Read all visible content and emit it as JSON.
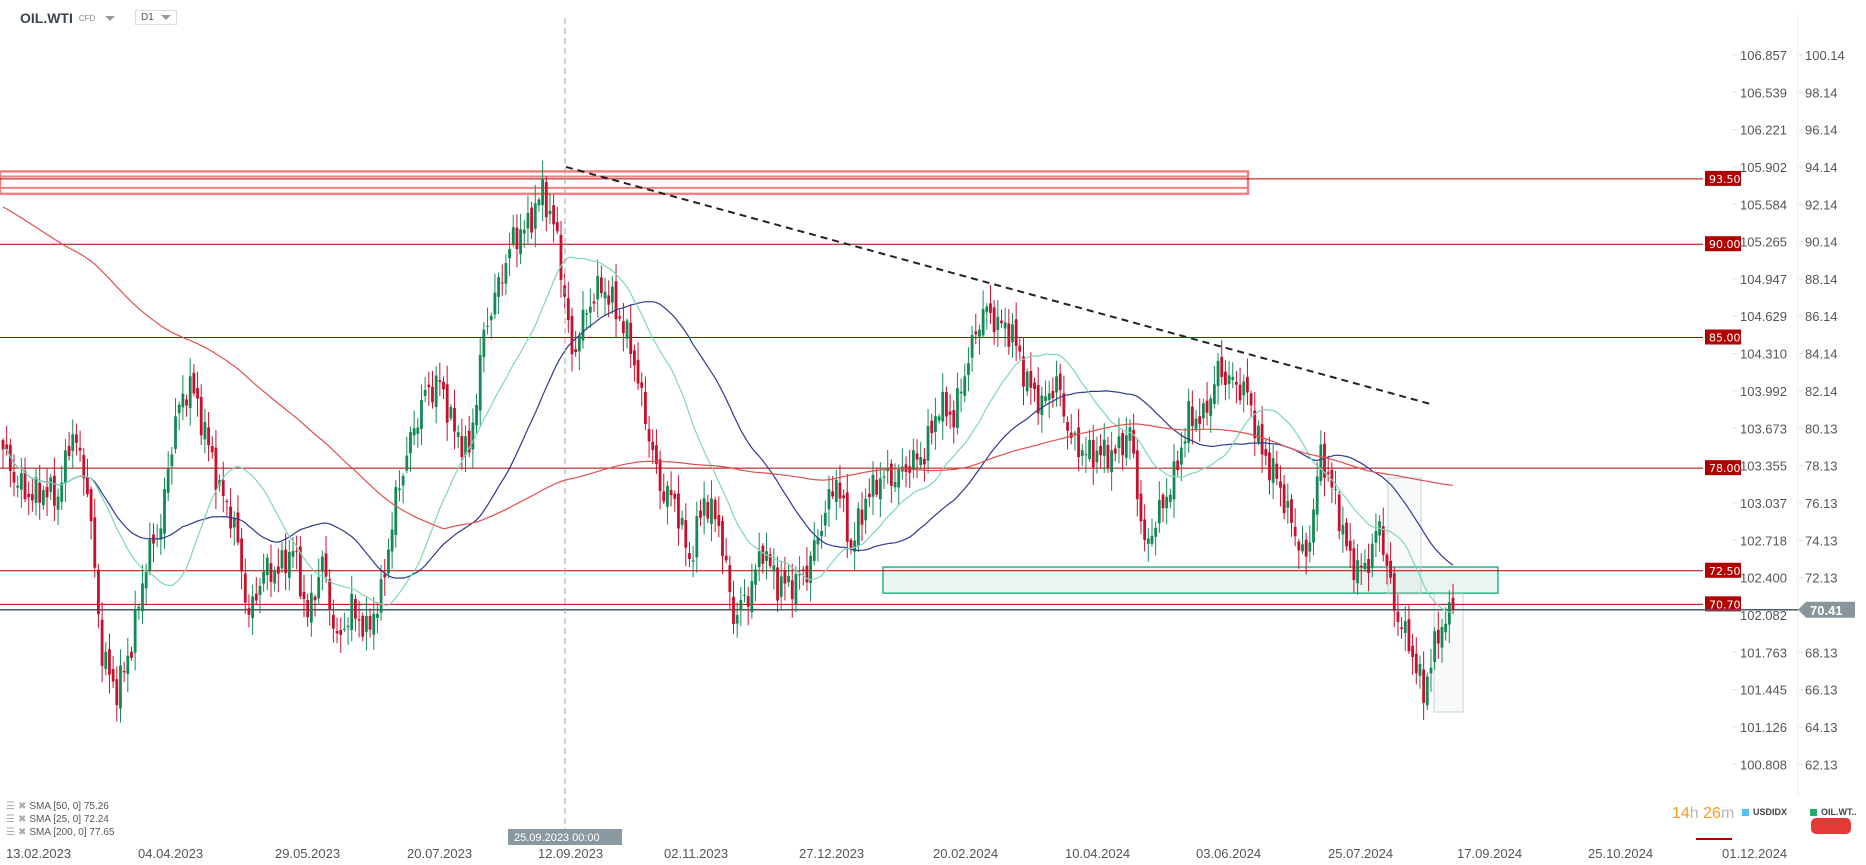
{
  "header": {
    "symbol": "OIL.WTI",
    "instrument_type": "CFD",
    "timeframe": "D1"
  },
  "indicators": [
    {
      "label": "SMA [50, 0] 75.26",
      "color": "#2e3a8c"
    },
    {
      "label": "SMA [25, 0] 72.24",
      "color": "#7fd6b5"
    },
    {
      "label": "SMA [200, 0] 77.65",
      "color": "#e05050"
    }
  ],
  "footer": {
    "timer_hours": "14",
    "timer_h": "h",
    "timer_minutes": "26",
    "timer_m": "m",
    "legend": [
      {
        "label": "USDIDX",
        "color": "#4fc3f7"
      },
      {
        "label": "OIL.WT..",
        "color": "#26a96c"
      }
    ]
  },
  "crosshair_label": "25.09.2023 00:00",
  "chart_data": {
    "type": "candlestick",
    "up_color": "#138a55",
    "down_color": "#c8102e",
    "x_tick_labels": [
      "13.02.2023",
      "04.04.2023",
      "29.05.2023",
      "20.07.2023",
      "12.09.2023",
      "02.11.2023",
      "27.12.2023",
      "20.02.2024",
      "10.04.2024",
      "03.06.2024",
      "25.07.2024",
      "17.09.2024",
      "25.10.2024",
      "01.12.2024"
    ],
    "y_ticks_oil": [
      "100.14",
      "98.14",
      "96.14",
      "94.14",
      "92.14",
      "90.14",
      "88.14",
      "86.14",
      "84.14",
      "82.14",
      "80.13",
      "78.13",
      "76.13",
      "74.13",
      "72.13",
      "70.41",
      "68.13",
      "66.13",
      "64.13",
      "62.13"
    ],
    "y_ticks_usdidx": [
      "106.857",
      "106.539",
      "106.221",
      "105.902",
      "105.584",
      "105.265",
      "104.947",
      "104.629",
      "104.310",
      "103.992",
      "103.673",
      "103.355",
      "103.037",
      "102.718",
      "102.400",
      "102.082",
      "101.763",
      "101.445",
      "101.126",
      "100.808"
    ],
    "ylim": [
      60.5,
      102.5
    ],
    "approx_closes": [
      79.5,
      77.5,
      76.5,
      76.8,
      76.5,
      80,
      77,
      68,
      66,
      68.5,
      73,
      75,
      80.7,
      82.6,
      80,
      76.9,
      75,
      70,
      72.5,
      72.5,
      73.7,
      70,
      73,
      68.6,
      70.5,
      69.2,
      71.2,
      76.3,
      79.5,
      82,
      82.6,
      80,
      78.8,
      85.2,
      87.8,
      90.3,
      91,
      92.9,
      90.3,
      84,
      86.5,
      87.8,
      86.5,
      84.6,
      80.7,
      76.9,
      76.3,
      73,
      76.3,
      75,
      70,
      71.2,
      73.7,
      71.8,
      71.8,
      72.5,
      75,
      77.5,
      73.7,
      76.3,
      77.5,
      77.5,
      78.2,
      78.8,
      81.4,
      80.7,
      83.9,
      86.5,
      85.8,
      85.2,
      82.6,
      81.4,
      82.6,
      79.5,
      78.8,
      78.8,
      78.8,
      80,
      73.7,
      75.6,
      77.5,
      80.7,
      80.7,
      83.2,
      82.6,
      82,
      78.8,
      77.5,
      75,
      73,
      78.8,
      76.3,
      73,
      72.5,
      75,
      70.5,
      68.6,
      66,
      69.2,
      70.41
    ],
    "levels": [
      {
        "label": "93.50",
        "value": 93.5
      },
      {
        "label": "90.00",
        "value": 90
      },
      {
        "label": "85.00",
        "value": 85
      },
      {
        "label": "78.00",
        "value": 78
      },
      {
        "label": "72.50",
        "value": 72.5
      },
      {
        "label": "70.70",
        "value": 70.7
      }
    ],
    "current_price": {
      "label": "70.41",
      "value": 70.41
    },
    "resistance_zone": [
      92.7,
      93.9
    ],
    "support_zone": [
      71.3,
      72.7
    ],
    "trendline": [
      94.14,
      81.4
    ],
    "sma_periods": [
      50,
      25,
      200
    ]
  }
}
